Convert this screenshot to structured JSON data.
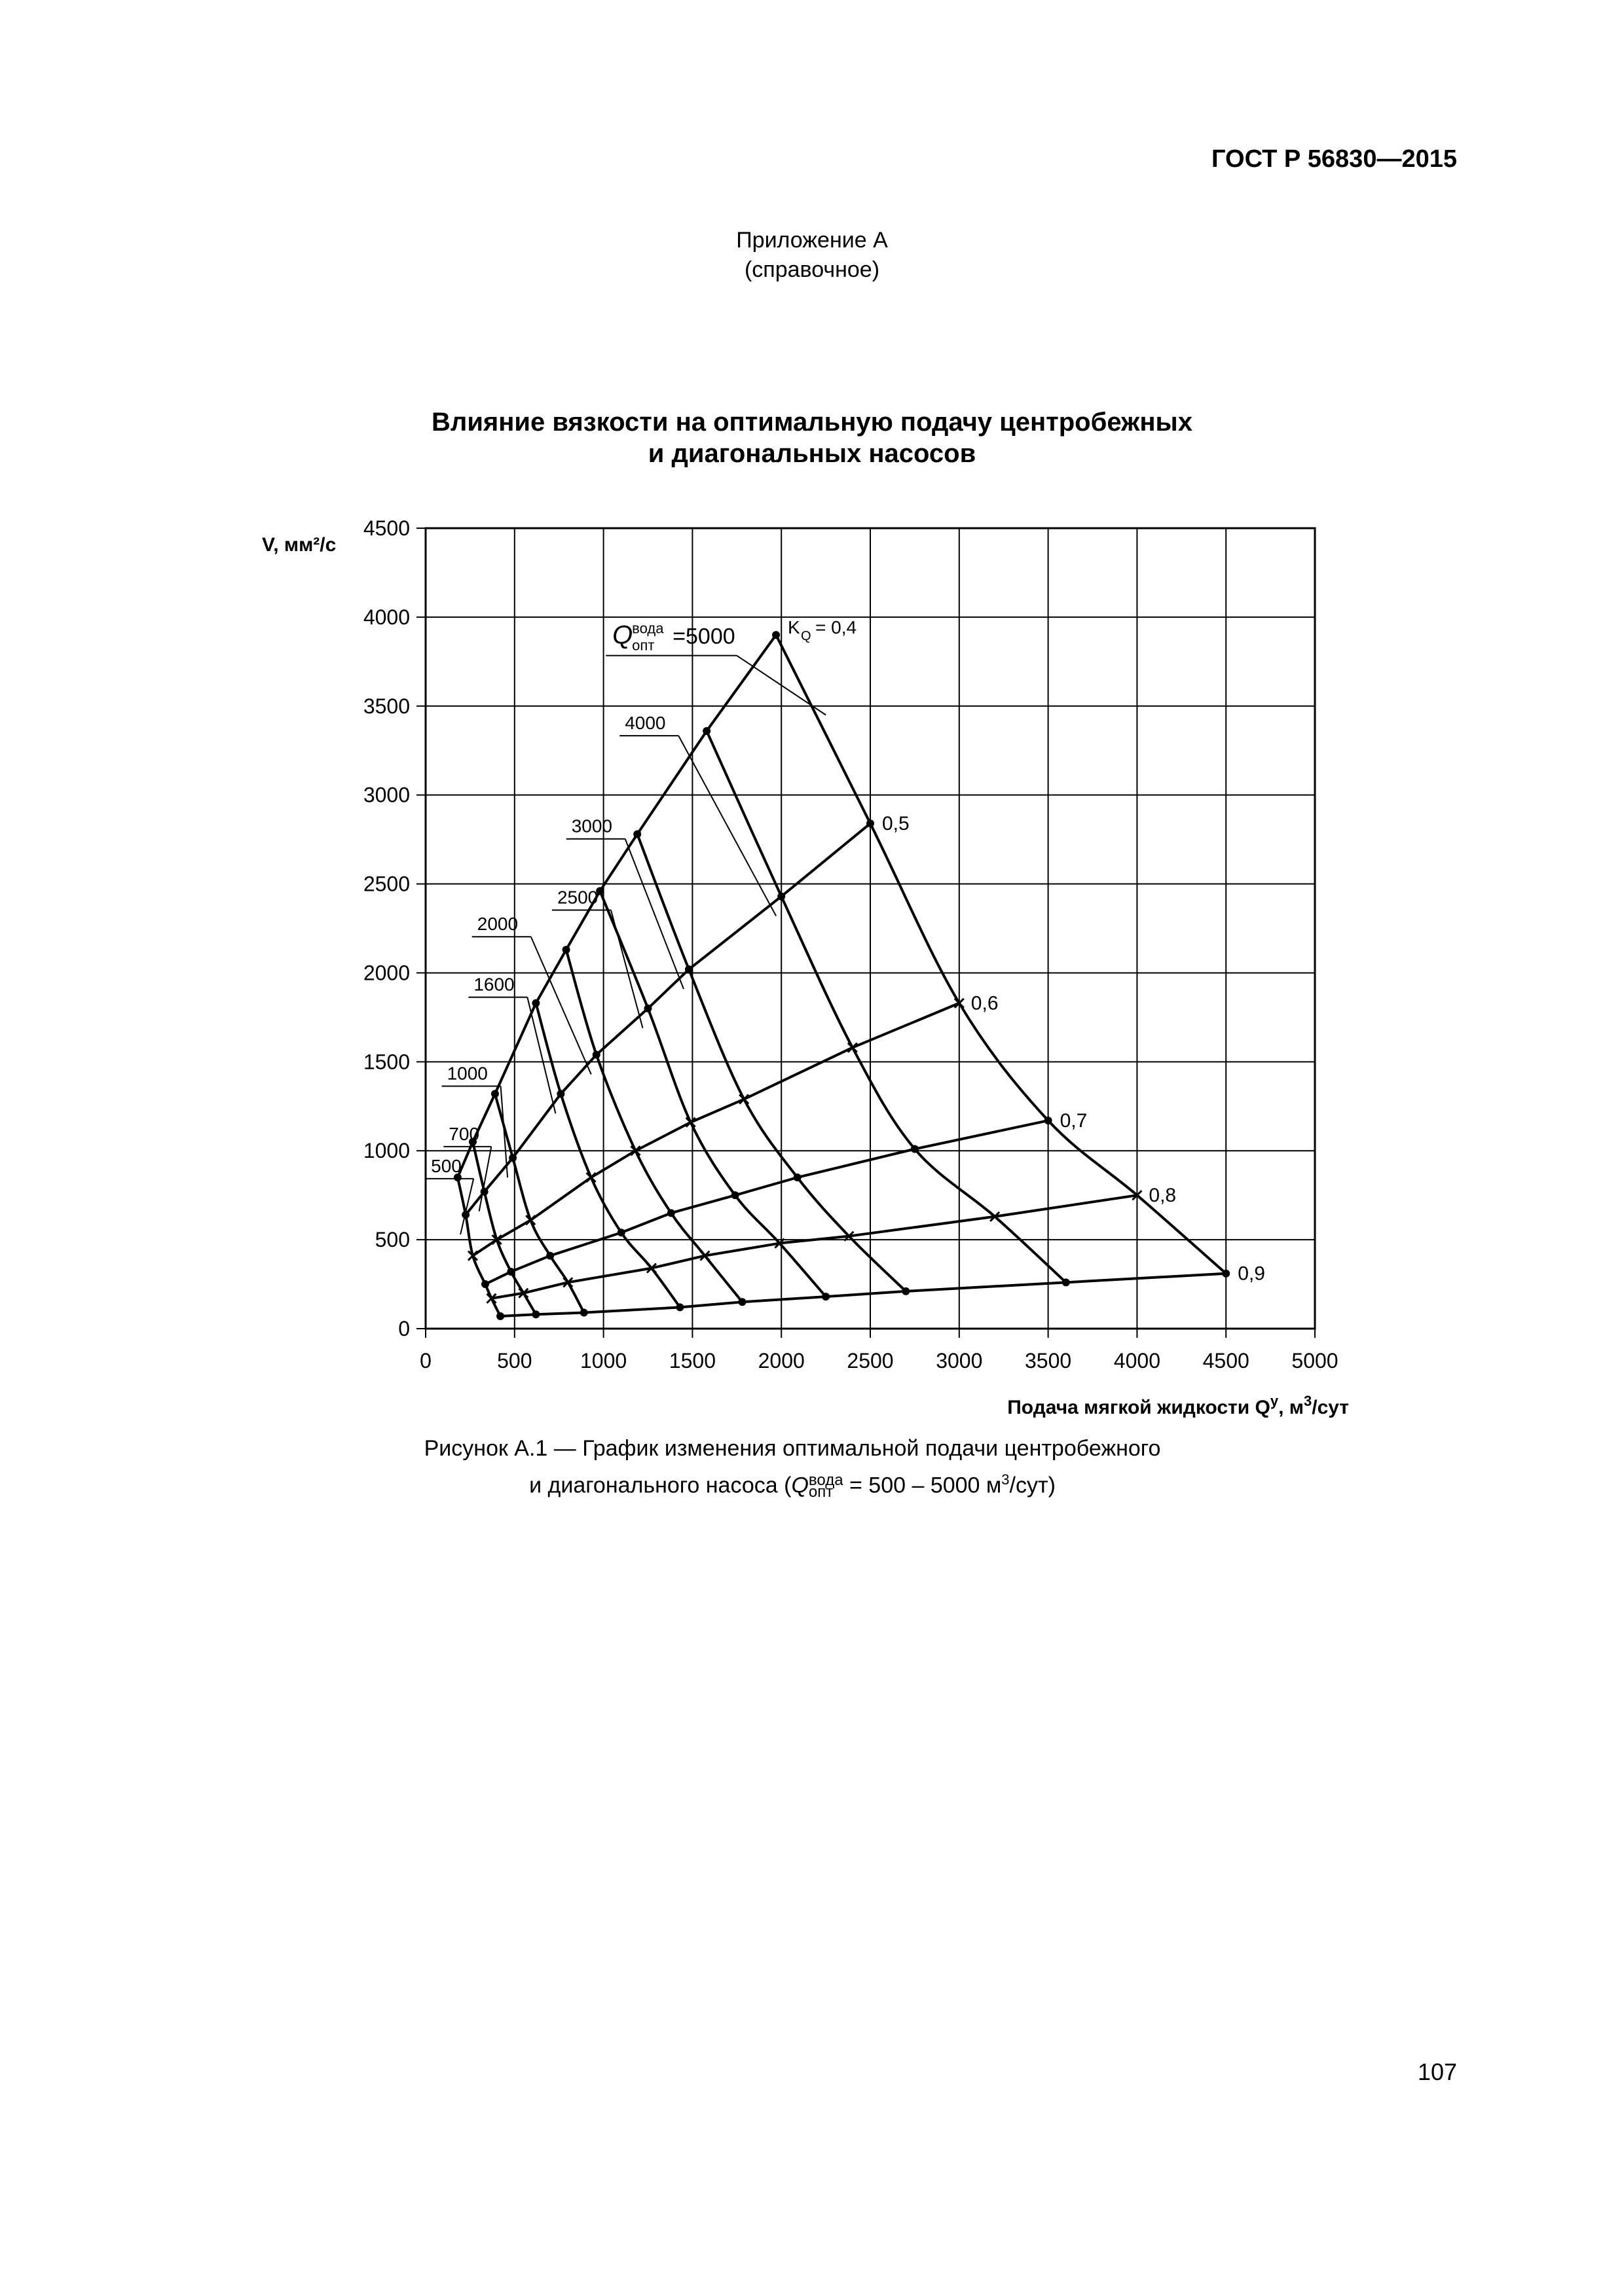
{
  "header": {
    "doc_code": "ГОСТ Р 56830—2015",
    "appendix": "Приложение А",
    "appendix_type": "(справочное)"
  },
  "figure": {
    "title_line1": "Влияние вязкости на оптимальную подачу центробежных",
    "title_line2": "и диагональных насосов",
    "caption_line1": "Рисунок А.1 — График изменения оптимальной подачи центробежного",
    "caption_line2_prefix": "и диагонального насоса (",
    "caption_line2_suffix": " = 500 – 5000 м",
    "caption_line2_end": "/сут)"
  },
  "chart_data": {
    "type": "line",
    "title": "Влияние вязкости на оптимальную подачу центробежных и диагональных насосов",
    "xlabel": "Подача мягкой жидкости Q",
    "xlabel_sup": "у",
    "xlabel_unit": ", м",
    "xlabel_unit_sup": "3",
    "xlabel_unit_end": "/сут",
    "ylabel": "V, мм²/с",
    "xlim": [
      0,
      5000
    ],
    "ylim": [
      0,
      4500
    ],
    "x_ticks": [
      0,
      500,
      1000,
      1500,
      2000,
      2500,
      3000,
      3500,
      4000,
      4500,
      5000
    ],
    "y_ticks": [
      0,
      500,
      1000,
      1500,
      2000,
      2500,
      3000,
      3500,
      4000,
      4500
    ],
    "grid": true,
    "q_symbol": "Q",
    "q_sup": "вода",
    "q_sub": "опт",
    "kq_symbol": "K",
    "kq_sub": "Q",
    "series_q_water": [
      {
        "name": "=5000",
        "label_pos": [
          1050,
          3850
        ],
        "points": [
          [
            4500,
            310
          ],
          [
            4000,
            750
          ],
          [
            3500,
            1170
          ],
          [
            3000,
            1830
          ],
          [
            2500,
            2840
          ],
          [
            1970,
            3900
          ]
        ]
      },
      {
        "name": "4000",
        "label_pos": [
          1120,
          3370
        ],
        "points": [
          [
            3600,
            260
          ],
          [
            3200,
            630
          ],
          [
            2750,
            1010
          ],
          [
            2400,
            1580
          ],
          [
            2000,
            2430
          ],
          [
            1580,
            3360
          ]
        ]
      },
      {
        "name": "3000",
        "label_pos": [
          820,
          2790
        ],
        "points": [
          [
            2700,
            210
          ],
          [
            2380,
            520
          ],
          [
            2090,
            850
          ],
          [
            1790,
            1290
          ],
          [
            1480,
            2020
          ],
          [
            1190,
            2780
          ]
        ]
      },
      {
        "name": "2500",
        "label_pos": [
          740,
          2390
        ],
        "points": [
          [
            2250,
            180
          ],
          [
            1990,
            480
          ],
          [
            1740,
            750
          ],
          [
            1490,
            1160
          ],
          [
            1250,
            1800
          ],
          [
            980,
            2460
          ]
        ]
      },
      {
        "name": "2000",
        "label_pos": [
          290,
          2240
        ],
        "points": [
          [
            1780,
            150
          ],
          [
            1570,
            410
          ],
          [
            1380,
            650
          ],
          [
            1180,
            1000
          ],
          [
            960,
            1540
          ],
          [
            790,
            2130
          ]
        ]
      },
      {
        "name": "1600",
        "label_pos": [
          270,
          1900
        ],
        "points": [
          [
            1430,
            120
          ],
          [
            1270,
            340
          ],
          [
            1100,
            540
          ],
          [
            930,
            850
          ],
          [
            760,
            1320
          ],
          [
            620,
            1830
          ]
        ]
      },
      {
        "name": "1000",
        "label_pos": [
          120,
          1400
        ],
        "points": [
          [
            890,
            90
          ],
          [
            800,
            260
          ],
          [
            700,
            410
          ],
          [
            590,
            610
          ],
          [
            490,
            960
          ],
          [
            390,
            1320
          ]
        ]
      },
      {
        "name": "700",
        "label_pos": [
          130,
          1060
        ],
        "points": [
          [
            620,
            80
          ],
          [
            550,
            200
          ],
          [
            480,
            320
          ],
          [
            400,
            500
          ],
          [
            330,
            770
          ],
          [
            265,
            1050
          ]
        ]
      },
      {
        "name": "500",
        "label_pos": [
          30,
          880
        ],
        "points": [
          [
            420,
            70
          ],
          [
            370,
            170
          ],
          [
            335,
            250
          ],
          [
            265,
            410
          ],
          [
            225,
            640
          ],
          [
            180,
            850
          ]
        ]
      }
    ],
    "series_kq": [
      {
        "name": "= 0,4",
        "points": [
          [
            180,
            850
          ],
          [
            265,
            1050
          ],
          [
            390,
            1320
          ],
          [
            620,
            1830
          ],
          [
            790,
            2130
          ],
          [
            980,
            2460
          ],
          [
            1190,
            2780
          ],
          [
            1580,
            3360
          ],
          [
            1970,
            3900
          ]
        ]
      },
      {
        "name": "0,5",
        "points": [
          [
            225,
            640
          ],
          [
            330,
            770
          ],
          [
            490,
            960
          ],
          [
            760,
            1320
          ],
          [
            960,
            1540
          ],
          [
            1250,
            1800
          ],
          [
            1480,
            2020
          ],
          [
            2000,
            2430
          ],
          [
            2500,
            2840
          ]
        ]
      },
      {
        "name": "0,6",
        "points": [
          [
            265,
            410
          ],
          [
            400,
            500
          ],
          [
            590,
            610
          ],
          [
            930,
            850
          ],
          [
            1180,
            1000
          ],
          [
            1490,
            1160
          ],
          [
            1790,
            1290
          ],
          [
            2400,
            1580
          ],
          [
            3000,
            1830
          ]
        ]
      },
      {
        "name": "0,7",
        "points": [
          [
            335,
            250
          ],
          [
            480,
            320
          ],
          [
            700,
            410
          ],
          [
            1100,
            540
          ],
          [
            1380,
            650
          ],
          [
            1740,
            750
          ],
          [
            2090,
            850
          ],
          [
            2750,
            1010
          ],
          [
            3500,
            1170
          ]
        ]
      },
      {
        "name": "0,8",
        "points": [
          [
            370,
            170
          ],
          [
            550,
            200
          ],
          [
            800,
            260
          ],
          [
            1270,
            340
          ],
          [
            1570,
            410
          ],
          [
            1990,
            480
          ],
          [
            2380,
            520
          ],
          [
            3200,
            630
          ],
          [
            4000,
            750
          ]
        ]
      },
      {
        "name": "0,9",
        "points": [
          [
            420,
            70
          ],
          [
            620,
            80
          ],
          [
            890,
            90
          ],
          [
            1430,
            120
          ],
          [
            1780,
            150
          ],
          [
            2250,
            180
          ],
          [
            2700,
            210
          ],
          [
            3600,
            260
          ],
          [
            4500,
            310
          ]
        ]
      }
    ]
  },
  "footer": {
    "page_number": "107"
  }
}
